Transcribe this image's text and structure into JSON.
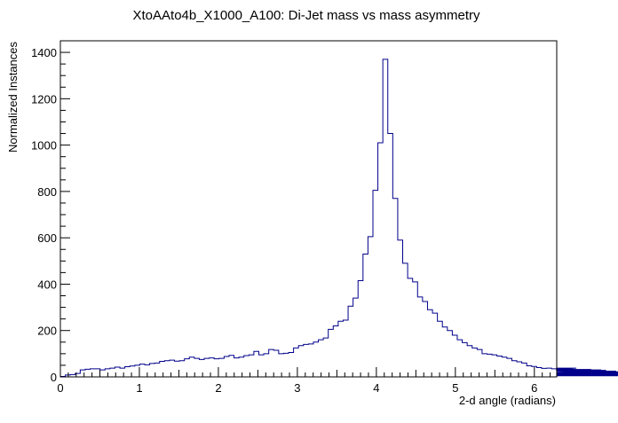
{
  "chart_data": {
    "type": "histogram",
    "title": "XtoAAto4b_X1000_A100: Di-Jet mass vs mass asymmetry",
    "xlabel": "2-d angle (radians)",
    "ylabel": "Normalized Instances",
    "xlim": [
      0,
      6.2832
    ],
    "ylim": [
      0,
      1450
    ],
    "x_ticks": [
      0,
      1,
      2,
      3,
      4,
      5,
      6
    ],
    "y_ticks": [
      0,
      200,
      400,
      600,
      800,
      1000,
      1200,
      1400
    ],
    "grid": false,
    "legend": "none",
    "line_color": "#00008b",
    "bin_width": 0.0628,
    "series": [
      {
        "values": [
          2,
          8,
          10,
          15,
          30,
          33,
          35,
          35,
          30,
          35,
          38,
          42,
          38,
          44,
          47,
          50,
          55,
          52,
          58,
          60,
          67,
          70,
          72,
          68,
          70,
          78,
          85,
          80,
          75,
          80,
          82,
          78,
          80,
          88,
          93,
          82,
          85,
          92,
          95,
          110,
          95,
          100,
          118,
          115,
          100,
          102,
          105,
          125,
          135,
          140,
          142,
          150,
          160,
          168,
          205,
          220,
          240,
          245,
          305,
          340,
          415,
          530,
          605,
          805,
          1010,
          1370,
          1050,
          770,
          590,
          490,
          425,
          410,
          345,
          325,
          290,
          275,
          240,
          215,
          200,
          180,
          160,
          148,
          135,
          125,
          118,
          100,
          98,
          95,
          90,
          85,
          80,
          70,
          65,
          60,
          48,
          45,
          40,
          37,
          38,
          35,
          30,
          35,
          32,
          35,
          38,
          30,
          28,
          32,
          25,
          30,
          28,
          22,
          25,
          20,
          18,
          22,
          15,
          12,
          14,
          10,
          15,
          10,
          8,
          5,
          8,
          10,
          12,
          15,
          18,
          20
        ]
      }
    ]
  }
}
